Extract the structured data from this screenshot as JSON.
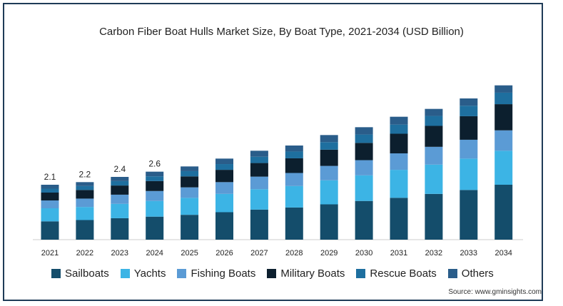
{
  "chart_data": {
    "type": "bar",
    "stacked": true,
    "title": "Carbon Fiber Boat Hulls Market Size, By Boat Type, 2021-2034 (USD Billion)",
    "xlabel": "",
    "ylabel": "",
    "ylim": [
      0,
      7.2
    ],
    "grid": false,
    "legend_position": "bottom",
    "source": "Source: www.gminsights.com",
    "categories": [
      "2021",
      "2022",
      "2023",
      "2024",
      "2025",
      "2026",
      "2027",
      "2028",
      "2029",
      "2030",
      "2031",
      "2032",
      "2033",
      "2034"
    ],
    "totals": [
      2.1,
      2.2,
      2.4,
      2.6,
      2.8,
      3.1,
      3.4,
      3.6,
      4.0,
      4.3,
      4.7,
      5.0,
      5.4,
      5.9
    ],
    "total_labels": [
      "2.1",
      "2.2",
      "2.4",
      "2.6",
      "",
      "",
      "",
      "",
      "",
      "",
      "",
      "",
      "",
      ""
    ],
    "series": [
      {
        "name": "Sailboats",
        "color": "#144d6b",
        "values": [
          0.7,
          0.75,
          0.82,
          0.88,
          0.95,
          1.05,
          1.15,
          1.23,
          1.35,
          1.48,
          1.6,
          1.75,
          1.9,
          2.1
        ]
      },
      {
        "name": "Yachts",
        "color": "#3cb4e5",
        "values": [
          0.5,
          0.5,
          0.55,
          0.6,
          0.65,
          0.7,
          0.78,
          0.82,
          0.92,
          0.98,
          1.07,
          1.12,
          1.2,
          1.3
        ]
      },
      {
        "name": "Fishing Boats",
        "color": "#5b9bd5",
        "values": [
          0.3,
          0.32,
          0.35,
          0.38,
          0.4,
          0.45,
          0.48,
          0.5,
          0.55,
          0.58,
          0.63,
          0.68,
          0.72,
          0.78
        ]
      },
      {
        "name": "Military Boats",
        "color": "#0c1f2e",
        "values": [
          0.3,
          0.33,
          0.35,
          0.38,
          0.42,
          0.47,
          0.52,
          0.56,
          0.62,
          0.66,
          0.75,
          0.8,
          0.9,
          1.0
        ]
      },
      {
        "name": "Rescue Boats",
        "color": "#1e6f9f",
        "values": [
          0.15,
          0.15,
          0.17,
          0.18,
          0.2,
          0.22,
          0.24,
          0.26,
          0.29,
          0.32,
          0.35,
          0.38,
          0.4,
          0.44
        ]
      },
      {
        "name": "Others",
        "color": "#2a5d8a",
        "values": [
          0.15,
          0.15,
          0.16,
          0.18,
          0.18,
          0.21,
          0.23,
          0.23,
          0.27,
          0.28,
          0.3,
          0.27,
          0.28,
          0.28
        ]
      }
    ]
  }
}
